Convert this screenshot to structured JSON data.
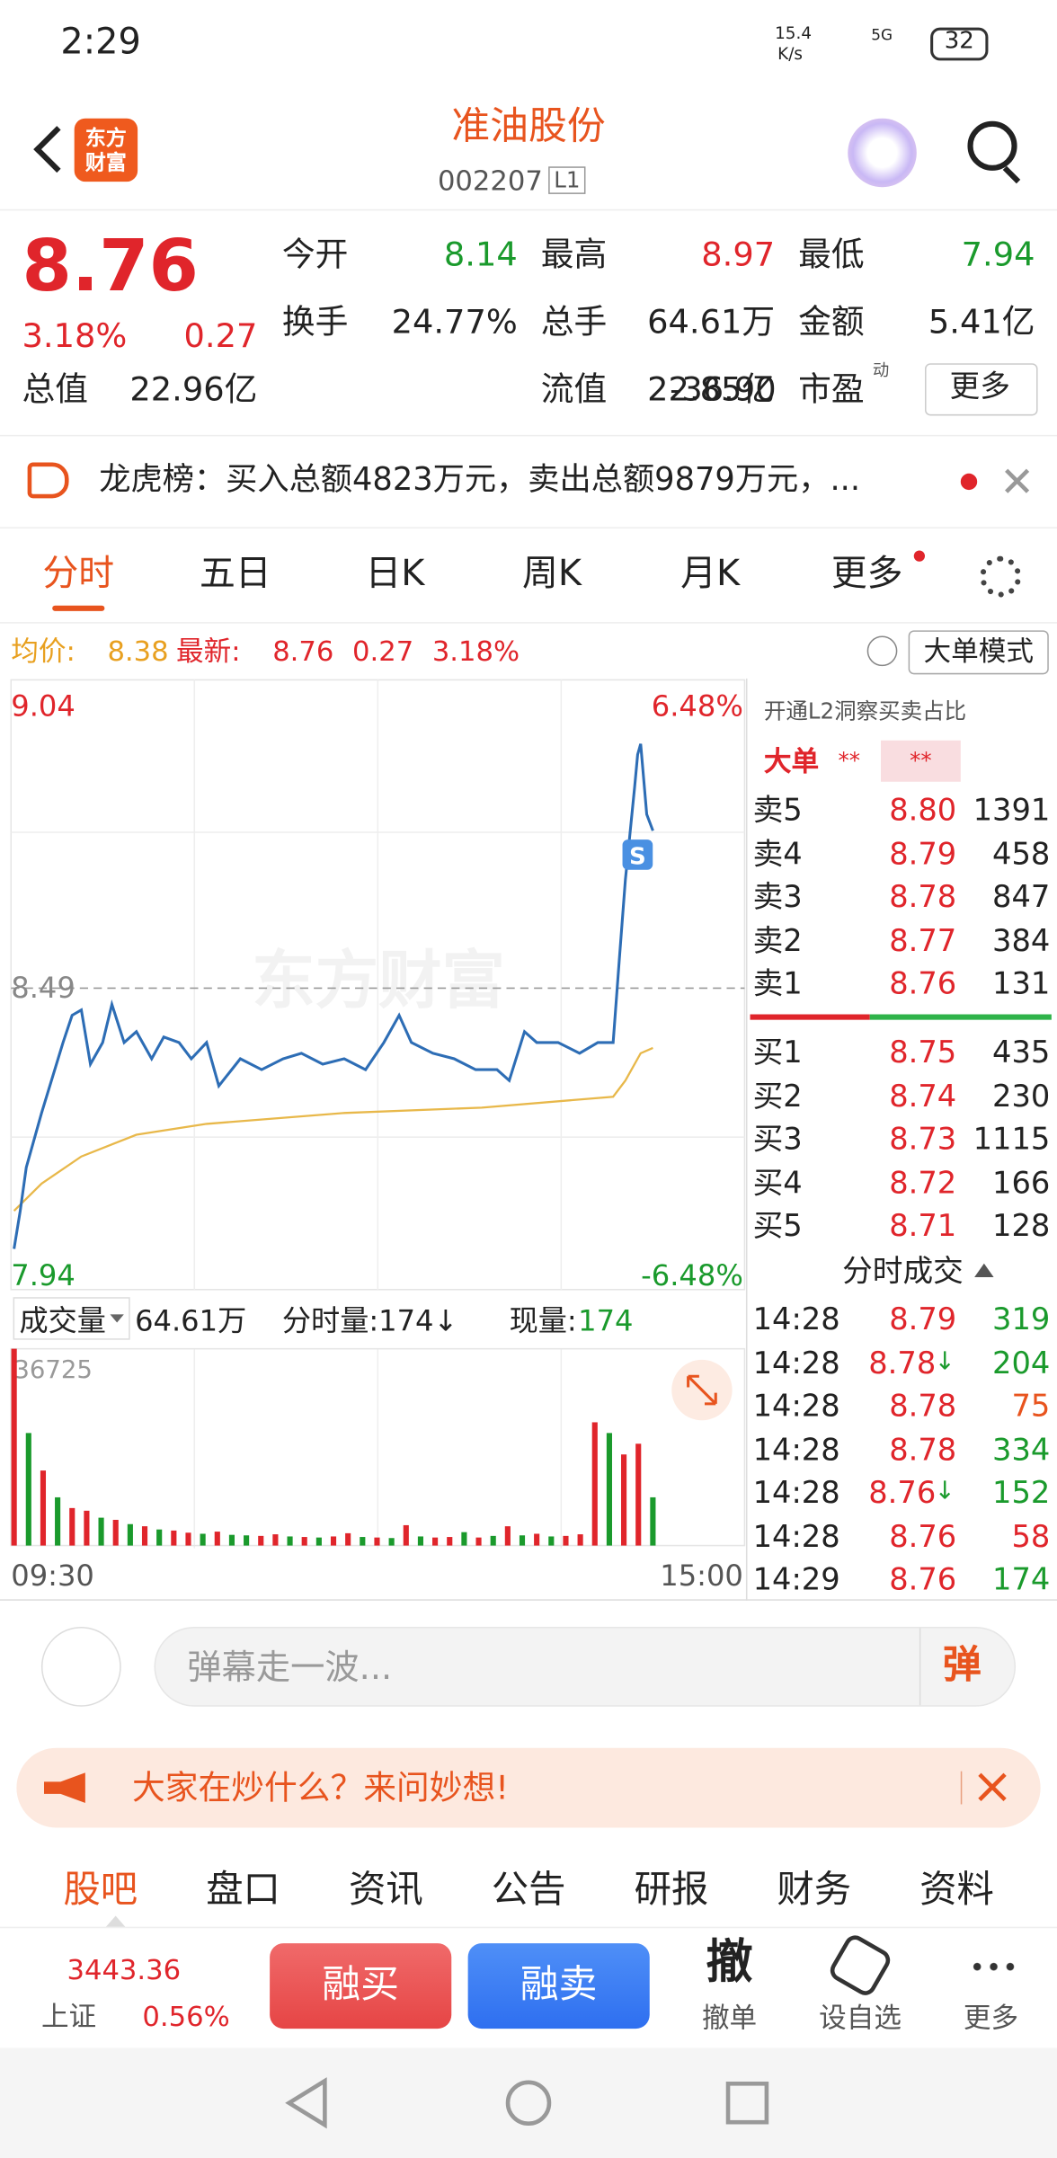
{
  "status": {
    "time": "2:29",
    "speed": "15.4",
    "speed_unit": "K/s",
    "network": "5G",
    "battery": "32"
  },
  "header": {
    "logo": "东方财富",
    "title": "准油股份",
    "code": "002207",
    "level": "L1"
  },
  "quote": {
    "price": "8.76",
    "pct": "3.18%",
    "change": "0.27",
    "stats": [
      {
        "label": "今开",
        "value": "8.14"
      },
      {
        "label": "最高",
        "value": "8.97"
      },
      {
        "label": "最低",
        "value": "7.94"
      },
      {
        "label": "换手",
        "value": "24.77%"
      },
      {
        "label": "总手",
        "value": "64.61万"
      },
      {
        "label": "金额",
        "value": "5.41亿"
      },
      {
        "label": "总值",
        "value": "22.96亿"
      },
      {
        "label": "流值",
        "value": "22.85亿"
      },
      {
        "label": "市盈",
        "sup": "动",
        "value": "-36.90"
      }
    ],
    "more": "更多"
  },
  "notice": "龙虎榜：买入总额4823万元，卖出总额9879万元，...",
  "tabs": [
    "分时",
    "五日",
    "日K",
    "周K",
    "月K",
    "更多"
  ],
  "infobar": {
    "avg_label": "均价:",
    "avg": "8.38",
    "latest_label": "最新:",
    "latest": "8.76",
    "change": "0.27",
    "pct": "3.18%",
    "mode": "大单模式"
  },
  "chart_data": {
    "type": "line",
    "xlim": [
      0,
      240
    ],
    "ylim": [
      7.94,
      9.04
    ],
    "yticks": [
      7.94,
      8.49,
      9.04
    ],
    "prev_close": 8.49,
    "y2lim": [
      -6.48,
      6.48
    ],
    "y2ticks": [
      {
        "value": -6.48,
        "label": "-6.48%"
      },
      {
        "value": 6.48,
        "label": "6.48%"
      }
    ],
    "xlabels": [
      "09:30",
      "15:00"
    ],
    "marker": "S",
    "x": [
      1,
      3,
      5,
      10,
      17,
      20,
      23,
      26,
      30,
      33,
      37,
      41,
      46,
      50,
      55,
      59,
      64,
      68,
      75,
      82,
      89,
      95,
      102,
      109,
      116,
      122,
      127,
      131,
      138,
      145,
      152,
      159,
      163,
      168,
      172,
      179,
      186,
      192,
      197,
      199,
      201,
      204,
      205,
      206,
      208,
      210
    ],
    "series": [
      {
        "name": "最新",
        "color": "#2d6db5",
        "values": [
          8.01,
          8.08,
          8.16,
          8.26,
          8.39,
          8.44,
          8.45,
          8.35,
          8.39,
          8.46,
          8.39,
          8.41,
          8.36,
          8.4,
          8.39,
          8.36,
          8.39,
          8.31,
          8.36,
          8.34,
          8.36,
          8.37,
          8.35,
          8.36,
          8.34,
          8.39,
          8.44,
          8.39,
          8.37,
          8.36,
          8.34,
          8.34,
          8.32,
          8.41,
          8.39,
          8.39,
          8.37,
          8.39,
          8.39,
          8.54,
          8.69,
          8.86,
          8.92,
          8.94,
          8.81,
          8.78
        ]
      }
    ],
    "avg_x": [
      1,
      10,
      23,
      41,
      64,
      109,
      154,
      197,
      201,
      206,
      210
    ],
    "avg": {
      "name": "均价",
      "color": "#e8b84a",
      "values": [
        8.08,
        8.13,
        8.18,
        8.22,
        8.24,
        8.26,
        8.27,
        8.29,
        8.32,
        8.37,
        8.38
      ]
    }
  },
  "volume": {
    "type": "bar",
    "label": "成交量",
    "total": "64.61万",
    "minute": "分时量:174↓",
    "current_label": "现量:",
    "current": "174",
    "max_label": "36725",
    "ylim": [
      0,
      36725
    ],
    "xlim": [
      0,
      240
    ],
    "up_color": "#e0252b",
    "down_color": "#1a9a2c",
    "values": [
      36725,
      21000,
      14000,
      9000,
      7000,
      6500,
      5200,
      4800,
      4000,
      3600,
      3000,
      2800,
      2400,
      2200,
      2600,
      2000,
      1900,
      1800,
      2100,
      1700,
      1600,
      1500,
      1700,
      2300,
      1600,
      1500,
      1400,
      3800,
      1700,
      1500,
      1600,
      2500,
      1500,
      1800,
      3600,
      1900,
      2200,
      1700,
      1800,
      2100,
      23000,
      21000,
      17000,
      19000,
      9000
    ],
    "rising": [
      1,
      0,
      1,
      0,
      1,
      1,
      0,
      1,
      0,
      1,
      0,
      1,
      1,
      0,
      1,
      0,
      0,
      1,
      1,
      0,
      1,
      0,
      1,
      1,
      0,
      1,
      0,
      1,
      0,
      1,
      1,
      0,
      1,
      0,
      1,
      0,
      1,
      0,
      1,
      1,
      1,
      0,
      1,
      1,
      0
    ]
  },
  "orderbook": {
    "promo": "开通L2洞察买卖占比",
    "big": "大单",
    "big_a": "**",
    "big_b": "**",
    "sells": [
      {
        "label": "卖5",
        "price": "8.80",
        "vol": "1391"
      },
      {
        "label": "卖4",
        "price": "8.79",
        "vol": "458"
      },
      {
        "label": "卖3",
        "price": "8.78",
        "vol": "847"
      },
      {
        "label": "卖2",
        "price": "8.77",
        "vol": "384"
      },
      {
        "label": "卖1",
        "price": "8.76",
        "vol": "131"
      }
    ],
    "buys": [
      {
        "label": "买1",
        "price": "8.75",
        "vol": "435"
      },
      {
        "label": "买2",
        "price": "8.74",
        "vol": "230"
      },
      {
        "label": "买3",
        "price": "8.73",
        "vol": "1115"
      },
      {
        "label": "买4",
        "price": "8.72",
        "vol": "166"
      },
      {
        "label": "买5",
        "price": "8.71",
        "vol": "128"
      }
    ],
    "trades_title": "分时成交",
    "trades": [
      {
        "time": "14:28",
        "price": "8.79",
        "vol": "319",
        "color": "#1a9a2c"
      },
      {
        "time": "14:28",
        "price": "8.78",
        "arrow": "↓",
        "vol": "204",
        "color": "#1a9a2c"
      },
      {
        "time": "14:28",
        "price": "8.78",
        "vol": "75",
        "color": "#e8541e"
      },
      {
        "time": "14:28",
        "price": "8.78",
        "vol": "334",
        "color": "#1a9a2c"
      },
      {
        "time": "14:28",
        "price": "8.76",
        "arrow": "↓",
        "vol": "152",
        "color": "#1a9a2c"
      },
      {
        "time": "14:28",
        "price": "8.76",
        "vol": "58",
        "color": "#e0252b"
      },
      {
        "time": "14:29",
        "price": "8.76",
        "vol": "174",
        "color": "#1a9a2c"
      }
    ]
  },
  "comment": {
    "placeholder": "弹幕走一波...",
    "button": "弹"
  },
  "banner": "大家在炒什么？来问妙想!",
  "bottom_tabs": [
    "股吧",
    "盘口",
    "资讯",
    "公告",
    "研报",
    "财务",
    "资料"
  ],
  "footer": {
    "index": "3443.36",
    "index_name": "上证",
    "index_pct": "0.56%",
    "buy": "融买",
    "sell": "融卖",
    "cancel_icon": "撤",
    "cancel": "撤单",
    "watch": "设自选",
    "more": "更多"
  }
}
